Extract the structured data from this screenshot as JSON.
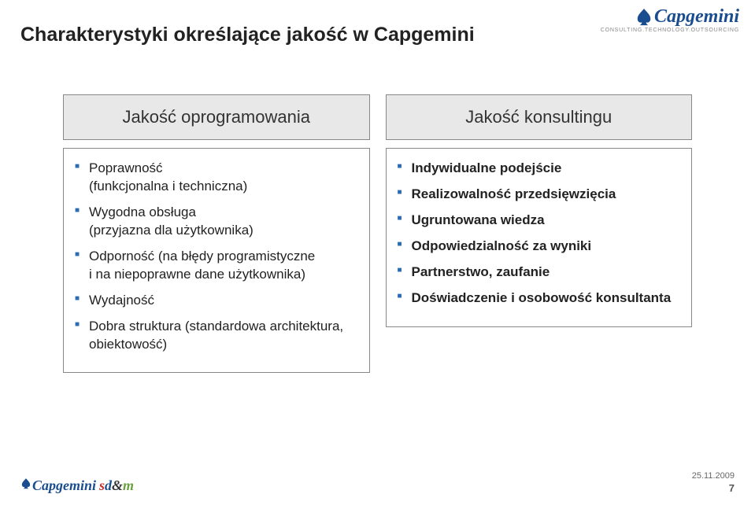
{
  "title": "Charakterystyki określające jakość w Capgemini",
  "logo": {
    "brand": "Capgemini",
    "tagline": "CONSULTING.TECHNOLOGY.OUTSOURCING",
    "spade_fill": "#1a4d8f",
    "brand_color": "#1a4d8f"
  },
  "columns": {
    "left": {
      "header": "Jakość oprogramowania",
      "items": [
        "Poprawność\n(funkcjonalna i techniczna)",
        "Wygodna obsługa\n(przyjazna dla użytkownika)",
        "Odporność (na błędy programistyczne\ni na niepoprawne dane użytkownika)",
        "Wydajność",
        "Dobra struktura (standardowa architektura, obiektowość)"
      ]
    },
    "right": {
      "header": "Jakość konsultingu",
      "items": [
        "Indywidualne podejście",
        "Realizowalność przedsięwzięcia",
        "Ugruntowana wiedza",
        "Odpowiedzialność za wyniki",
        "Partnerstwo, zaufanie",
        "Doświadczenie i osobowość konsultanta"
      ]
    }
  },
  "footer": {
    "brand": "Capgemini",
    "sdm": {
      "s": "s",
      "d": "d",
      "amp": "&",
      "m": "m"
    },
    "date": "25.11.2009",
    "page": "7"
  },
  "style": {
    "bullet_color": "#2a6bb4",
    "header_bg": "#e8e8e8",
    "border_color": "#888888",
    "title_color": "#222222",
    "body_text_color": "#222222",
    "title_fontsize": 25,
    "header_fontsize": 22,
    "body_fontsize": 17
  }
}
